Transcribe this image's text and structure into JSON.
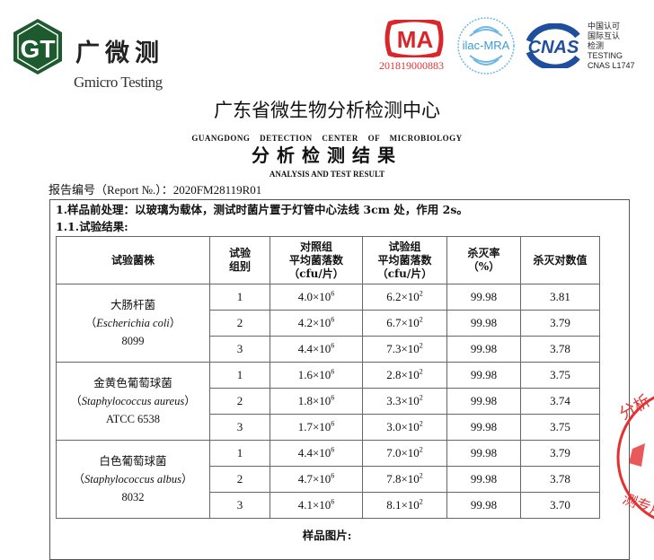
{
  "header": {
    "logo_cn": "广微测",
    "logo_en": "Gmicro Testing",
    "logo_mark": "GT",
    "cma_mark": "MA",
    "cma_number": "201819000883",
    "ilac_mark": "ilac-MRA",
    "cnas_mark": "CNAS",
    "cnas_text": [
      "中国认可",
      "国际互认",
      "检测",
      "TESTING",
      "CNAS L1747"
    ]
  },
  "document": {
    "org_title": "广东省微生物分析检测中心",
    "org_title_en": "GUANGDONG DETECTION CENTER OF MICROBIOLOGY",
    "report_title": "分析检测结果",
    "report_title_en": "ANALYSIS AND TEST RESULT",
    "report_no": "报告编号（Report №.）：2020FM28119R01",
    "pretreatment": "1.样品前处理：以玻璃为载体，测试时菌片置于灯管中心法线 3cm 处，作用 2s。",
    "results_heading": "1.1.试验结果:",
    "sample_pics_label": "样品图片:",
    "watermark": "Gmicro Testing",
    "stamp_text": "分析检测专用章"
  },
  "table": {
    "headers": [
      "试验菌株",
      "试验组别",
      "对照组平均菌落数（cfu/片）",
      "试验组平均菌落数（cfu/片）",
      "杀灭率（%）",
      "杀灭对数值"
    ],
    "header_lines": [
      [
        "试验菌株"
      ],
      [
        "试验",
        "组别"
      ],
      [
        "对照组",
        "平均菌落数",
        "（cfu/片）"
      ],
      [
        "试验组",
        "平均菌落数",
        "（cfu/片）"
      ],
      [
        "杀灭率",
        "（%）"
      ],
      [
        "杀灭对数值"
      ]
    ],
    "groups": [
      {
        "name_cn": "大肠杆菌",
        "name_latin": "Escherichia coli",
        "strain_no": "8099",
        "rows": [
          {
            "group": "1",
            "control": "4.0×10",
            "control_exp": "6",
            "test": "6.2×10",
            "test_exp": "2",
            "kill_rate": "99.98",
            "log": "3.81"
          },
          {
            "group": "2",
            "control": "4.2×10",
            "control_exp": "6",
            "test": "6.7×10",
            "test_exp": "2",
            "kill_rate": "99.98",
            "log": "3.79"
          },
          {
            "group": "3",
            "control": "4.4×10",
            "control_exp": "6",
            "test": "7.3×10",
            "test_exp": "2",
            "kill_rate": "99.98",
            "log": "3.78"
          }
        ]
      },
      {
        "name_cn": "金黄色葡萄球菌",
        "name_latin": "Staphylococcus aureus",
        "strain_no": "ATCC 6538",
        "rows": [
          {
            "group": "1",
            "control": "1.6×10",
            "control_exp": "6",
            "test": "2.8×10",
            "test_exp": "2",
            "kill_rate": "99.98",
            "log": "3.75"
          },
          {
            "group": "2",
            "control": "1.8×10",
            "control_exp": "6",
            "test": "3.3×10",
            "test_exp": "2",
            "kill_rate": "99.98",
            "log": "3.74"
          },
          {
            "group": "3",
            "control": "1.7×10",
            "control_exp": "6",
            "test": "3.0×10",
            "test_exp": "2",
            "kill_rate": "99.98",
            "log": "3.75"
          }
        ]
      },
      {
        "name_cn": "白色葡萄球菌",
        "name_latin": "Staphylococcus albus",
        "strain_no": "8032",
        "rows": [
          {
            "group": "1",
            "control": "4.4×10",
            "control_exp": "6",
            "test": "7.0×10",
            "test_exp": "2",
            "kill_rate": "99.98",
            "log": "3.79"
          },
          {
            "group": "2",
            "control": "4.7×10",
            "control_exp": "6",
            "test": "7.8×10",
            "test_exp": "2",
            "kill_rate": "99.98",
            "log": "3.78"
          },
          {
            "group": "3",
            "control": "4.1×10",
            "control_exp": "6",
            "test": "8.1×10",
            "test_exp": "2",
            "kill_rate": "99.98",
            "log": "3.70"
          }
        ]
      }
    ]
  },
  "colors": {
    "logo_green": "#1d5b2e",
    "cma_red": "#d9262a",
    "ilac_blue": "#3a9ad9",
    "cnas_blue": "#1f4f9c",
    "stamp_red": "#e53030"
  }
}
